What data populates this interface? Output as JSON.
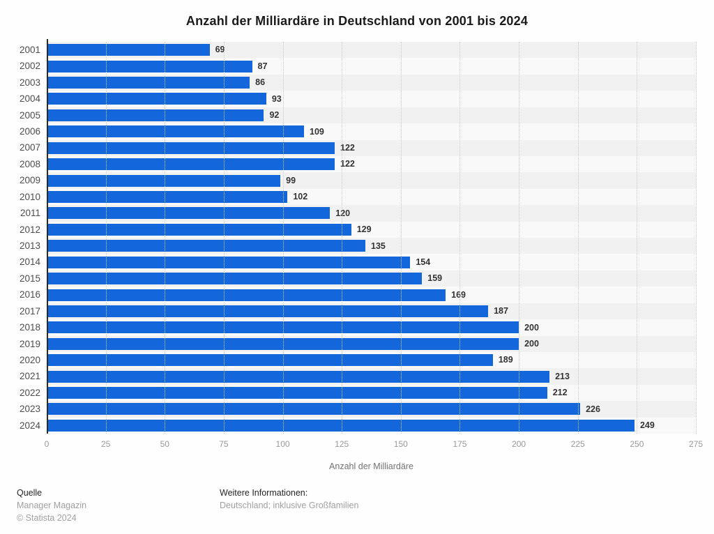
{
  "title": "Anzahl der Milliardäre in Deutschland von 2001 bis 2024",
  "chart_data": {
    "type": "bar",
    "orientation": "horizontal",
    "title": "Anzahl der Milliardäre in Deutschland von 2001 bis 2024",
    "categories": [
      "2001",
      "2002",
      "2003",
      "2004",
      "2005",
      "2006",
      "2007",
      "2008",
      "2009",
      "2010",
      "2011",
      "2012",
      "2013",
      "2014",
      "2015",
      "2016",
      "2017",
      "2018",
      "2019",
      "2020",
      "2021",
      "2022",
      "2023",
      "2024"
    ],
    "values": [
      69,
      87,
      86,
      93,
      92,
      109,
      122,
      122,
      99,
      102,
      120,
      129,
      135,
      154,
      159,
      169,
      187,
      200,
      200,
      189,
      213,
      212,
      226,
      249
    ],
    "xlabel": "Anzahl der Milliardäre",
    "ylabel": "",
    "xlim": [
      0,
      275
    ],
    "xticks": [
      0,
      25,
      50,
      75,
      100,
      125,
      150,
      175,
      200,
      225,
      250,
      275
    ],
    "grid": "vertical-dotted",
    "legend": "none",
    "bar_color": "#1467db",
    "row_stripe_colors": [
      "#f1f1f2",
      "#f9f9f9"
    ]
  },
  "footer": {
    "source_label": "Quelle",
    "source_value": "Manager Magazin",
    "copyright": "© Statista 2024",
    "info_label": "Weitere Informationen:",
    "info_value": "Deutschland; inklusive Großfamilien"
  }
}
